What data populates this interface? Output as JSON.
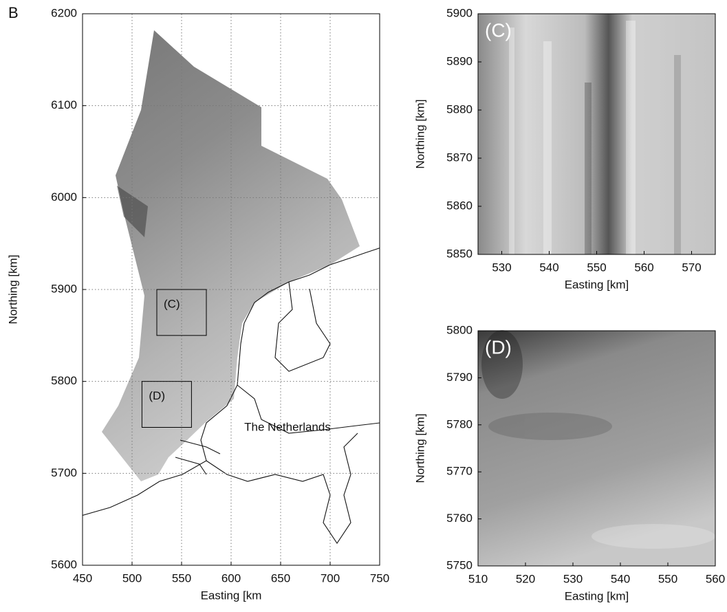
{
  "chart_data": [
    {
      "type": "image",
      "panel_label": "B",
      "xlabel": "Easting [km",
      "ylabel": "Northing [km]",
      "xlim": [
        450,
        750
      ],
      "xticks": [
        450,
        500,
        550,
        600,
        650,
        700,
        750
      ],
      "ylim": [
        5600,
        6200
      ],
      "yticks": [
        5600,
        5700,
        5800,
        5900,
        6000,
        6100,
        6200
      ],
      "grid": true,
      "boxes": [
        {
          "label": "(C)",
          "x": [
            525,
            575
          ],
          "y": [
            5850,
            5900
          ]
        },
        {
          "label": "(D)",
          "x": [
            510,
            560
          ],
          "y": [
            5750,
            5800
          ]
        }
      ],
      "annotations": [
        "The Netherlands"
      ]
    },
    {
      "type": "image",
      "panel_label": "(C)",
      "xlabel": "Easting [km]",
      "ylabel": "Northing [km]",
      "xlim": [
        525,
        575
      ],
      "xticks": [
        530,
        540,
        550,
        560,
        570
      ],
      "ylim": [
        5850,
        5900
      ],
      "yticks": [
        5850,
        5860,
        5870,
        5880,
        5890,
        5900
      ],
      "grid": false
    },
    {
      "type": "image",
      "panel_label": "(D)",
      "xlabel": "Easting [km]",
      "ylabel": "Northing [km]",
      "xlim": [
        510,
        560
      ],
      "xticks": [
        510,
        520,
        530,
        540,
        550,
        560
      ],
      "ylim": [
        5750,
        5800
      ],
      "yticks": [
        5750,
        5760,
        5770,
        5780,
        5790,
        5800
      ],
      "grid": false
    }
  ]
}
